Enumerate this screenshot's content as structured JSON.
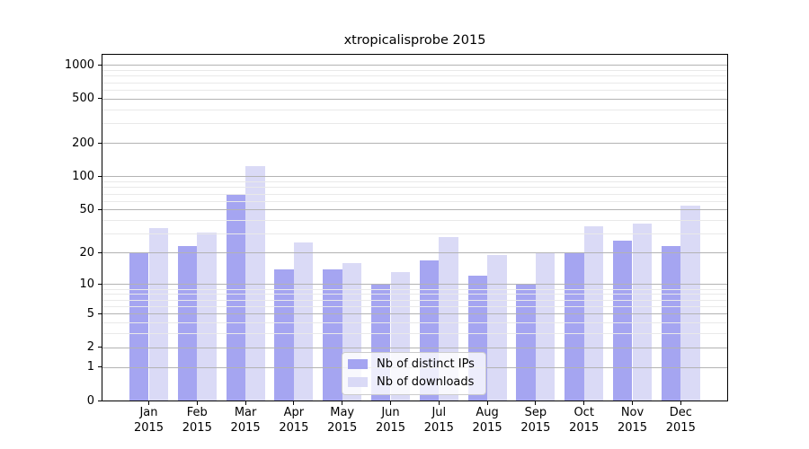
{
  "title": "xtropicalisprobe 2015",
  "chart_data": {
    "type": "bar",
    "title": "xtropicalisprobe 2015",
    "categories": [
      "Jan",
      "Feb",
      "Mar",
      "Apr",
      "May",
      "Jun",
      "Jul",
      "Aug",
      "Sep",
      "Oct",
      "Nov",
      "Dec"
    ],
    "year_label": "2015",
    "series": [
      {
        "name": "Nb of distinct IPs",
        "color": "#a5a5f1",
        "values": [
          20,
          23,
          68,
          14,
          14,
          10,
          17,
          12,
          10,
          20,
          26,
          23
        ]
      },
      {
        "name": "Nb of downloads",
        "color": "#dadaf6",
        "values": [
          34,
          31,
          125,
          25,
          16,
          13,
          28,
          19,
          20,
          35,
          37,
          54
        ]
      }
    ],
    "yscale": "log10(value+1)",
    "yticks": [
      0,
      1,
      2,
      5,
      10,
      20,
      50,
      100,
      200,
      500,
      1000
    ],
    "y_minor_ticks": [
      3,
      4,
      6,
      7,
      8,
      9,
      30,
      40,
      60,
      70,
      80,
      90,
      300,
      400,
      600,
      700,
      800,
      900
    ],
    "ylim": [
      0,
      1300
    ],
    "xlabel": "",
    "ylabel": "",
    "grid": "horizontal, major and minor",
    "legend_position": "lower center",
    "colors": {
      "distinct_ips_bar": "#a5a5f1",
      "downloads_bar": "#dadaf6",
      "grid_major": "#b3b3b3",
      "grid_minor": "#e9e9e9",
      "axis": "#000000",
      "background": "#ffffff"
    }
  }
}
